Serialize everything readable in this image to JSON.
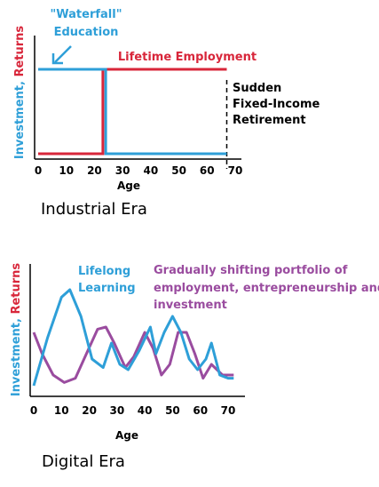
{
  "colors": {
    "blue": "#2e9fd8",
    "red": "#d8263a",
    "purple": "#9a4c9f",
    "black": "#000000"
  },
  "chart_data": [
    {
      "type": "line",
      "title": "Industrial Era",
      "xlabel": "Age",
      "ylabel_parts": [
        "Investment, ",
        "Returns"
      ],
      "xticks": [
        0,
        10,
        20,
        30,
        40,
        50,
        60,
        70
      ],
      "xlim": [
        0,
        70
      ],
      "annotations": {
        "education": [
          "\"Waterfall\"",
          "Education"
        ],
        "employment": "Lifetime Employment",
        "retirement": [
          "Sudden",
          "Fixed-Income",
          "Retirement"
        ]
      },
      "series": [
        {
          "name": "Education",
          "color": "blue",
          "points": [
            [
              0,
              1
            ],
            [
              24,
              1
            ],
            [
              24,
              0
            ],
            [
              67,
              0
            ]
          ]
        },
        {
          "name": "Employment",
          "color": "red",
          "points": [
            [
              0,
              0
            ],
            [
              23,
              0
            ],
            [
              23,
              1
            ],
            [
              67,
              1
            ]
          ]
        }
      ],
      "marker_x": 67
    },
    {
      "type": "line",
      "title": "Digital Era",
      "xlabel": "Age",
      "ylabel_parts": [
        "Investment, ",
        "Returns"
      ],
      "xticks": [
        0,
        10,
        20,
        30,
        40,
        50,
        60,
        70
      ],
      "xlim": [
        0,
        70
      ],
      "annotations": {
        "learning": [
          "Lifelong",
          "Learning"
        ],
        "portfolio": [
          "Gradually shifting portfolio of",
          "employment, entrepreneurship and",
          "investment"
        ]
      },
      "series": [
        {
          "name": "Lifelong Learning",
          "color": "blue",
          "points": [
            [
              0,
              0.05
            ],
            [
              5,
              0.5
            ],
            [
              10,
              0.88
            ],
            [
              13,
              0.95
            ],
            [
              17,
              0.7
            ],
            [
              21,
              0.3
            ],
            [
              25,
              0.22
            ],
            [
              28,
              0.45
            ],
            [
              31,
              0.25
            ],
            [
              34,
              0.2
            ],
            [
              38,
              0.38
            ],
            [
              42,
              0.6
            ],
            [
              44,
              0.35
            ],
            [
              47,
              0.55
            ],
            [
              50,
              0.7
            ],
            [
              53,
              0.55
            ],
            [
              56,
              0.3
            ],
            [
              59,
              0.2
            ],
            [
              62,
              0.3
            ],
            [
              64,
              0.45
            ],
            [
              67,
              0.15
            ],
            [
              70,
              0.12
            ],
            [
              72,
              0.12
            ]
          ]
        },
        {
          "name": "Portfolio",
          "color": "purple",
          "points": [
            [
              0,
              0.55
            ],
            [
              3,
              0.35
            ],
            [
              7,
              0.15
            ],
            [
              11,
              0.08
            ],
            [
              15,
              0.12
            ],
            [
              19,
              0.35
            ],
            [
              23,
              0.58
            ],
            [
              26,
              0.6
            ],
            [
              29,
              0.45
            ],
            [
              33,
              0.22
            ],
            [
              36,
              0.32
            ],
            [
              40,
              0.55
            ],
            [
              43,
              0.4
            ],
            [
              46,
              0.15
            ],
            [
              49,
              0.25
            ],
            [
              52,
              0.55
            ],
            [
              55,
              0.55
            ],
            [
              58,
              0.35
            ],
            [
              61,
              0.12
            ],
            [
              64,
              0.25
            ],
            [
              68,
              0.15
            ],
            [
              72,
              0.15
            ]
          ]
        }
      ]
    }
  ]
}
